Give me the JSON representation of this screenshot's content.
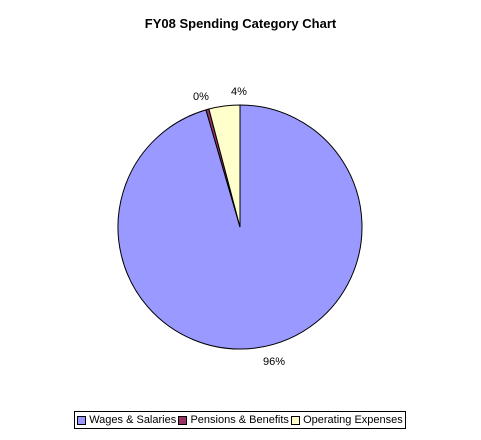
{
  "chart_data": {
    "type": "pie",
    "title": "FY08 Spending Category Chart",
    "categories": [
      "Wages & Salaries",
      "Pensions & Benefits",
      "Operating Expenses"
    ],
    "values": [
      95.5,
      0.4,
      4.1
    ],
    "labels": [
      "96%",
      "0%",
      "4%"
    ],
    "colors": [
      "#9999FF",
      "#993366",
      "#FFFFCC"
    ],
    "legend_position": "bottom"
  }
}
